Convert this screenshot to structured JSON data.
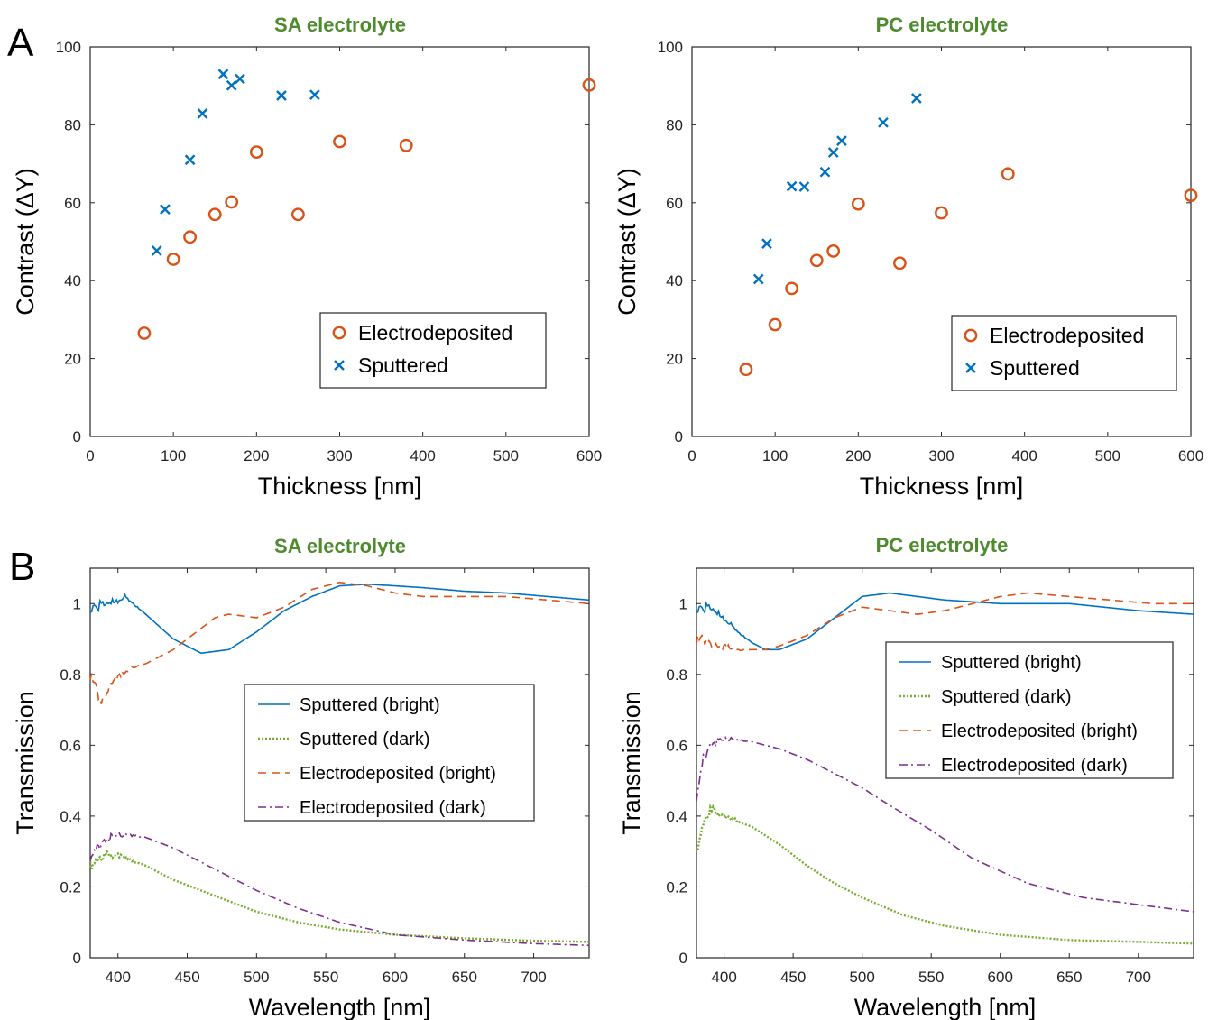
{
  "panel_letters": [
    "A",
    "B"
  ],
  "colors": {
    "electrodeposited": "#d95319",
    "sputtered": "#0072bd",
    "sputtered_dark": "#77ac30",
    "electrodeposited_dark": "#7e2f8e",
    "title": "#4e8a2e"
  },
  "chart_data": [
    {
      "type": "scatter",
      "title": "SA electrolyte",
      "xlabel": "Thickness [nm]",
      "ylabel": "Contrast (ΔY)",
      "xlim": [
        0,
        600
      ],
      "ylim": [
        0,
        100
      ],
      "xticks": [
        0,
        100,
        200,
        300,
        400,
        500,
        600
      ],
      "yticks": [
        0,
        20,
        40,
        60,
        80,
        100
      ],
      "legend_position": "lower-right",
      "series": [
        {
          "name": "Electrodeposited",
          "marker": "circle",
          "x": [
            65,
            100,
            120,
            150,
            170,
            200,
            250,
            300,
            380,
            600
          ],
          "y": [
            26.5,
            45.5,
            51.2,
            57,
            60.2,
            73,
            57,
            75.7,
            74.7,
            90.2
          ]
        },
        {
          "name": "Sputtered",
          "marker": "x",
          "x": [
            80,
            90,
            120,
            135,
            160,
            170,
            180,
            230,
            270
          ],
          "y": [
            47.7,
            58.3,
            71,
            82.9,
            93,
            90.1,
            91.8,
            87.5,
            87.7
          ]
        }
      ]
    },
    {
      "type": "scatter",
      "title": "PC electrolyte",
      "xlabel": "Thickness [nm]",
      "ylabel": "Contrast (ΔY)",
      "xlim": [
        0,
        600
      ],
      "ylim": [
        0,
        100
      ],
      "xticks": [
        0,
        100,
        200,
        300,
        400,
        500,
        600
      ],
      "yticks": [
        0,
        20,
        40,
        60,
        80,
        100
      ],
      "legend_position": "lower-right",
      "series": [
        {
          "name": "Electrodeposited",
          "marker": "circle",
          "x": [
            65,
            100,
            120,
            150,
            170,
            200,
            250,
            300,
            380,
            600
          ],
          "y": [
            17.2,
            28.7,
            38,
            45.2,
            47.6,
            59.7,
            44.5,
            57.4,
            67.4,
            61.9
          ]
        },
        {
          "name": "Sputtered",
          "marker": "x",
          "x": [
            80,
            90,
            120,
            135,
            160,
            170,
            180,
            230,
            270
          ],
          "y": [
            40.4,
            49.5,
            64.2,
            64.1,
            67.9,
            72.9,
            75.9,
            80.6,
            86.8
          ]
        }
      ]
    },
    {
      "type": "line",
      "title": "SA electrolyte",
      "xlabel": "Wavelength [nm]",
      "ylabel": "Transmission",
      "xlim": [
        380,
        740
      ],
      "ylim": [
        0,
        1.1
      ],
      "xticks": [
        400,
        450,
        500,
        550,
        600,
        650,
        700
      ],
      "yticks": [
        0,
        0.2,
        0.4,
        0.6,
        0.8,
        1
      ],
      "legend_position": "center-right",
      "series": [
        {
          "name": "Sputtered (bright)",
          "style": "solid",
          "x": [
            380,
            390,
            400,
            405,
            420,
            440,
            460,
            480,
            500,
            520,
            540,
            560,
            580,
            600,
            620,
            650,
            680,
            710,
            740
          ],
          "y": [
            0.98,
            1.0,
            1.01,
            1.02,
            0.97,
            0.9,
            0.86,
            0.87,
            0.92,
            0.98,
            1.02,
            1.05,
            1.055,
            1.05,
            1.045,
            1.035,
            1.03,
            1.02,
            1.01
          ]
        },
        {
          "name": "Sputtered (dark)",
          "style": "dotted",
          "x": [
            380,
            390,
            400,
            420,
            440,
            460,
            480,
            500,
            530,
            560,
            600,
            650,
            700,
            740
          ],
          "y": [
            0.26,
            0.29,
            0.29,
            0.26,
            0.22,
            0.19,
            0.16,
            0.13,
            0.1,
            0.08,
            0.065,
            0.055,
            0.048,
            0.045
          ]
        },
        {
          "name": "Electrodeposited (bright)",
          "style": "dashed",
          "x": [
            380,
            388,
            395,
            410,
            420,
            440,
            460,
            470,
            480,
            500,
            520,
            540,
            560,
            580,
            600,
            620,
            650,
            680,
            710,
            740
          ],
          "y": [
            0.8,
            0.72,
            0.78,
            0.82,
            0.83,
            0.87,
            0.93,
            0.96,
            0.97,
            0.96,
            0.99,
            1.04,
            1.06,
            1.05,
            1.03,
            1.02,
            1.02,
            1.02,
            1.01,
            1.0
          ]
        },
        {
          "name": "Electrodeposited (dark)",
          "style": "dashdot",
          "x": [
            380,
            390,
            400,
            420,
            440,
            460,
            480,
            500,
            530,
            560,
            600,
            650,
            700,
            740
          ],
          "y": [
            0.28,
            0.33,
            0.35,
            0.34,
            0.31,
            0.27,
            0.23,
            0.19,
            0.14,
            0.1,
            0.065,
            0.05,
            0.04,
            0.035
          ]
        }
      ]
    },
    {
      "type": "line",
      "title": "PC electrolyte",
      "xlabel": "Wavelength [nm]",
      "ylabel": "Transmission",
      "xlim": [
        380,
        740
      ],
      "ylim": [
        0,
        1.1
      ],
      "xticks": [
        400,
        450,
        500,
        550,
        600,
        650,
        700
      ],
      "yticks": [
        0,
        0.2,
        0.4,
        0.6,
        0.8,
        1
      ],
      "legend_position": "top-right",
      "series": [
        {
          "name": "Sputtered (bright)",
          "style": "solid",
          "x": [
            380,
            390,
            400,
            410,
            420,
            430,
            440,
            460,
            480,
            500,
            520,
            540,
            560,
            600,
            650,
            700,
            740
          ],
          "y": [
            0.98,
            0.99,
            0.96,
            0.92,
            0.89,
            0.87,
            0.87,
            0.9,
            0.96,
            1.02,
            1.03,
            1.02,
            1.01,
            1.0,
            1.0,
            0.98,
            0.97
          ]
        },
        {
          "name": "Sputtered (dark)",
          "style": "dotted",
          "x": [
            380,
            385,
            390,
            400,
            420,
            440,
            460,
            480,
            500,
            530,
            560,
            600,
            650,
            700,
            740
          ],
          "y": [
            0.3,
            0.38,
            0.42,
            0.4,
            0.37,
            0.32,
            0.26,
            0.21,
            0.17,
            0.12,
            0.09,
            0.065,
            0.05,
            0.045,
            0.04
          ]
        },
        {
          "name": "Electrodeposited (bright)",
          "style": "dashed",
          "x": [
            380,
            390,
            400,
            410,
            420,
            430,
            440,
            460,
            480,
            500,
            520,
            540,
            560,
            580,
            600,
            620,
            650,
            680,
            710,
            740
          ],
          "y": [
            0.9,
            0.89,
            0.88,
            0.87,
            0.87,
            0.87,
            0.88,
            0.91,
            0.96,
            0.99,
            0.98,
            0.97,
            0.98,
            1.0,
            1.02,
            1.03,
            1.02,
            1.01,
            1.0,
            1.0
          ]
        },
        {
          "name": "Electrodeposited (dark)",
          "style": "dashdot",
          "x": [
            380,
            385,
            390,
            400,
            420,
            440,
            460,
            480,
            500,
            520,
            550,
            580,
            620,
            660,
            700,
            740
          ],
          "y": [
            0.45,
            0.56,
            0.6,
            0.62,
            0.61,
            0.59,
            0.56,
            0.52,
            0.48,
            0.43,
            0.36,
            0.28,
            0.21,
            0.17,
            0.15,
            0.13
          ]
        }
      ]
    }
  ]
}
